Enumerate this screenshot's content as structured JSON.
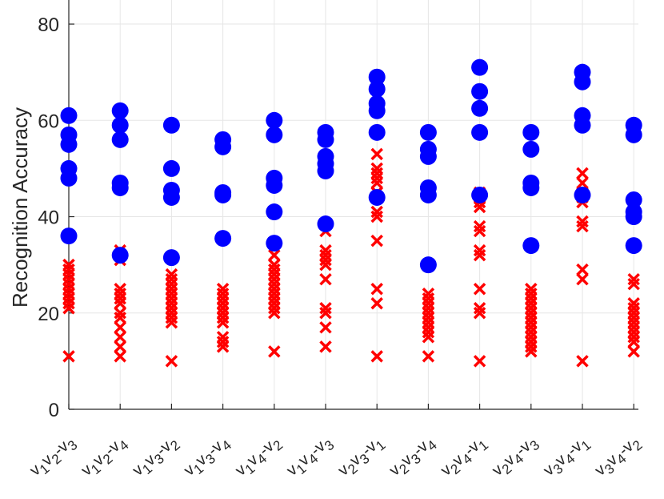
{
  "chart_data": {
    "type": "scatter",
    "title": "",
    "xlabel": "",
    "ylabel": "Recognition Accuracy",
    "ylim": [
      0,
      85
    ],
    "yticks": [
      0,
      20,
      40,
      60,
      80
    ],
    "grid": true,
    "categories": [
      "v1-v2-v3",
      "v1-v2-v4",
      "v1-v3-v2",
      "v1-v3-v4",
      "v1-v4-v2",
      "v1-v4-v3",
      "v2-v3-v1",
      "v2-v3-v4",
      "v2-v4-v1",
      "v2-v4-v3",
      "v3-v4-v1",
      "v3-v4-v2"
    ],
    "category_labels": [
      {
        "a": "v",
        "as": "1",
        "b": "v",
        "bs": "2",
        "c": "-v",
        "cs": "3"
      },
      {
        "a": "v",
        "as": "1",
        "b": "v",
        "bs": "2",
        "c": "-v",
        "cs": "4"
      },
      {
        "a": "v",
        "as": "1",
        "b": "v",
        "bs": "3",
        "c": "-v",
        "cs": "2"
      },
      {
        "a": "v",
        "as": "1",
        "b": "v",
        "bs": "3",
        "c": "-v",
        "cs": "4"
      },
      {
        "a": "v",
        "as": "1",
        "b": "v",
        "bs": "4",
        "c": "-v",
        "cs": "2"
      },
      {
        "a": "v",
        "as": "1",
        "b": "v",
        "bs": "4",
        "c": "-v",
        "cs": "3"
      },
      {
        "a": "v",
        "as": "2",
        "b": "v",
        "bs": "3",
        "c": "-v",
        "cs": "1"
      },
      {
        "a": "v",
        "as": "2",
        "b": "v",
        "bs": "3",
        "c": "-v",
        "cs": "4"
      },
      {
        "a": "v",
        "as": "2",
        "b": "v",
        "bs": "4",
        "c": "-v",
        "cs": "1"
      },
      {
        "a": "v",
        "as": "2",
        "b": "v",
        "bs": "4",
        "c": "-v",
        "cs": "3"
      },
      {
        "a": "v",
        "as": "3",
        "b": "v",
        "bs": "4",
        "c": "-v",
        "cs": "1"
      },
      {
        "a": "v",
        "as": "3",
        "b": "v",
        "bs": "4",
        "c": "-v",
        "cs": "2"
      }
    ],
    "series": [
      {
        "marker": "circle",
        "color": "#0000ff",
        "values": [
          [
            61,
            57,
            55,
            50,
            48,
            36
          ],
          [
            62,
            59,
            56,
            47,
            46,
            32
          ],
          [
            59,
            50,
            45.5,
            44,
            31.5
          ],
          [
            56,
            54.5,
            45,
            44.5,
            35.5
          ],
          [
            60,
            57,
            48,
            46.5,
            41,
            34.5
          ],
          [
            57.5,
            56,
            52.5,
            51,
            49.5,
            38.5
          ],
          [
            69,
            66.5,
            63.5,
            62,
            57.5,
            44
          ],
          [
            57.5,
            54,
            52.5,
            46,
            44.5,
            30
          ],
          [
            71,
            66,
            62.5,
            57.5,
            44.5
          ],
          [
            57.5,
            54,
            47,
            46,
            34
          ],
          [
            70,
            68,
            61,
            59,
            44.5
          ],
          [
            59,
            57,
            43.5,
            41,
            40,
            34
          ]
        ]
      },
      {
        "marker": "x",
        "color": "#ff0000",
        "values": [
          [
            30,
            29,
            28,
            27,
            26,
            25,
            24,
            23,
            22,
            21,
            11
          ],
          [
            33,
            31,
            25,
            24,
            23,
            22,
            20,
            19,
            17,
            15,
            13,
            11
          ],
          [
            28,
            27,
            26,
            25,
            24,
            23,
            22,
            21,
            20,
            19,
            18,
            10
          ],
          [
            25,
            24,
            23,
            22,
            21,
            20,
            19,
            18,
            15,
            14,
            13
          ],
          [
            32,
            30,
            29,
            28,
            27,
            26,
            25,
            24,
            23,
            22,
            21,
            20,
            12
          ],
          [
            37,
            33,
            32,
            31,
            30,
            27,
            21,
            20,
            17,
            13
          ],
          [
            53,
            50,
            49,
            48,
            47,
            45,
            44,
            41,
            40,
            35,
            25,
            22,
            11
          ],
          [
            24,
            23,
            22,
            21,
            20,
            19,
            18,
            17,
            16,
            15,
            11
          ],
          [
            45,
            44,
            43,
            42,
            38,
            37,
            33,
            32,
            25,
            21,
            20,
            10
          ],
          [
            25,
            24,
            23,
            22,
            21,
            20,
            19,
            18,
            17,
            16,
            15,
            14,
            13,
            12
          ],
          [
            49,
            47,
            45,
            44,
            43,
            39,
            38,
            29,
            27,
            10
          ],
          [
            27,
            26,
            22,
            21,
            20,
            19,
            18,
            17,
            16,
            15,
            14,
            12
          ]
        ]
      }
    ]
  }
}
